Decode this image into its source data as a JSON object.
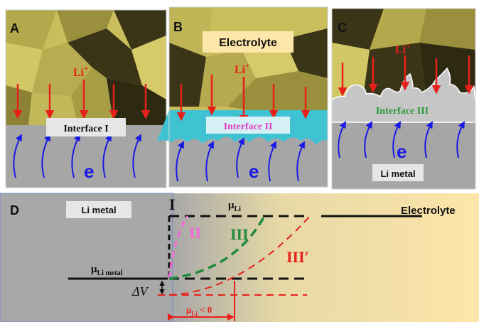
{
  "colors": {
    "crystal_light": "#c9bd5c",
    "crystal_mid": "#9a8f3c",
    "crystal_dark": "#3a3517",
    "metal_gray": "#a6a6a6",
    "interface_cyan": "#3fc3d3",
    "arrow_red": "#e8201a",
    "arrow_blue": "#1a1ae6",
    "electrolyte_bg": "#fde6a9",
    "label_box": "#e6e6e6"
  },
  "panelA": {
    "letter": "A",
    "ion": "Li",
    "ion_sup": "+",
    "interface": "Interface I",
    "electron": "e"
  },
  "panelB": {
    "letter": "B",
    "electrolyte": "Electrolyte",
    "ion": "Li",
    "ion_sup": "+",
    "interface": "Interface II",
    "electron": "e"
  },
  "panelC": {
    "letter": "C",
    "ion": "Li",
    "ion_sup": "+",
    "interface": "Interface III",
    "electron": "e",
    "metal": "Li metal"
  },
  "panelD": {
    "letter": "D",
    "metal": "Li metal",
    "electrolyte": "Electrolyte",
    "mu": "μ",
    "mu_li_sub": "Li",
    "mu_metal_sub": "Li metal",
    "delta_v": "ΔV",
    "bottom_label_sub": "Li",
    "bottom_label_rel": " < 0",
    "curve_I": "I",
    "curve_II": "II",
    "curve_III": "III",
    "curve_IIIp": "III′"
  }
}
